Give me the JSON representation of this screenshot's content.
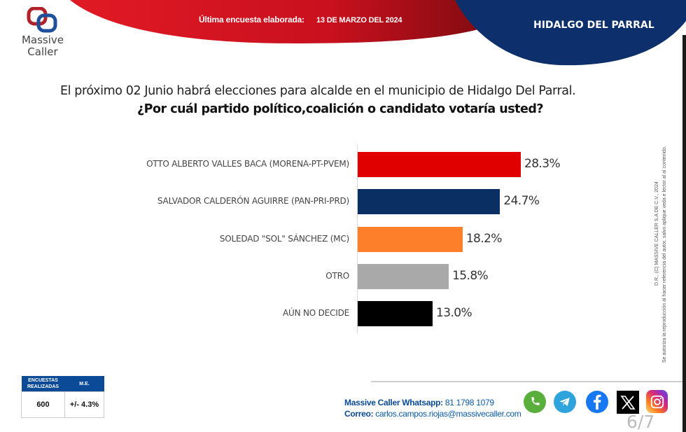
{
  "brand": {
    "name_line1": "Massive",
    "name_line2": "Caller"
  },
  "header": {
    "date_label": "Última encuesta elaborada:",
    "date_value": "13 DE MARZO DEL 2024",
    "city": "HIDALGO DEL PARRAL",
    "colors": {
      "red": "#c8101e",
      "navy": "#0d2f6b"
    }
  },
  "question": {
    "intro": "El próximo 02 Junio habrá elecciones para alcalde en el municipio de Hidalgo Del Parral.",
    "prompt": "¿Por cuál partido político,coalición o candidato votaría usted?"
  },
  "chart_data": {
    "type": "bar",
    "orientation": "horizontal",
    "title": "¿Por cuál partido político,coalición o candidato votaría usted?",
    "xlabel": "",
    "ylabel": "",
    "unit": "%",
    "grid": false,
    "categories": [
      "OTTO ALBERTO VALLES  BACA (MORENA-PT-PVEM)",
      "SALVADOR CALDERÓN AGUIRRE (PAN-PRI-PRD)",
      "SOLEDAD \"SOL\" SÁNCHEZ (MC)",
      "OTRO",
      "AÚN NO DECIDE"
    ],
    "values": [
      28.3,
      24.7,
      18.2,
      15.8,
      13.0
    ],
    "value_labels": [
      "28.3%",
      "24.7%",
      "18.2%",
      "15.8%",
      "13.0%"
    ],
    "colors": [
      "#e00000",
      "#0a2f63",
      "#fd7f2a",
      "#a9a9a9",
      "#000000"
    ],
    "xlim": [
      0,
      30
    ]
  },
  "side_note": {
    "line1": "D.R., (C) MASSIVE CALLER S.A DE C.V., 2024",
    "line2": "Se autoriza la reproducción al hacer referencia del autor, salvo aplique veda e lector al al contenido."
  },
  "stats": {
    "headers": [
      "ENCUESTAS REALIZADAS",
      "M.E."
    ],
    "values": [
      "600",
      "+/- 4.3%"
    ]
  },
  "contact": {
    "whatsapp_label": "Massive Caller Whatsapp:",
    "whatsapp_value": "81 1798 1079",
    "email_label": "Correo:",
    "email_value": "carlos.campos.riojas@massivecaller.com"
  },
  "social": [
    "whatsapp-icon",
    "telegram-icon",
    "facebook-icon",
    "x-icon",
    "instagram-icon"
  ],
  "page": "6/7"
}
